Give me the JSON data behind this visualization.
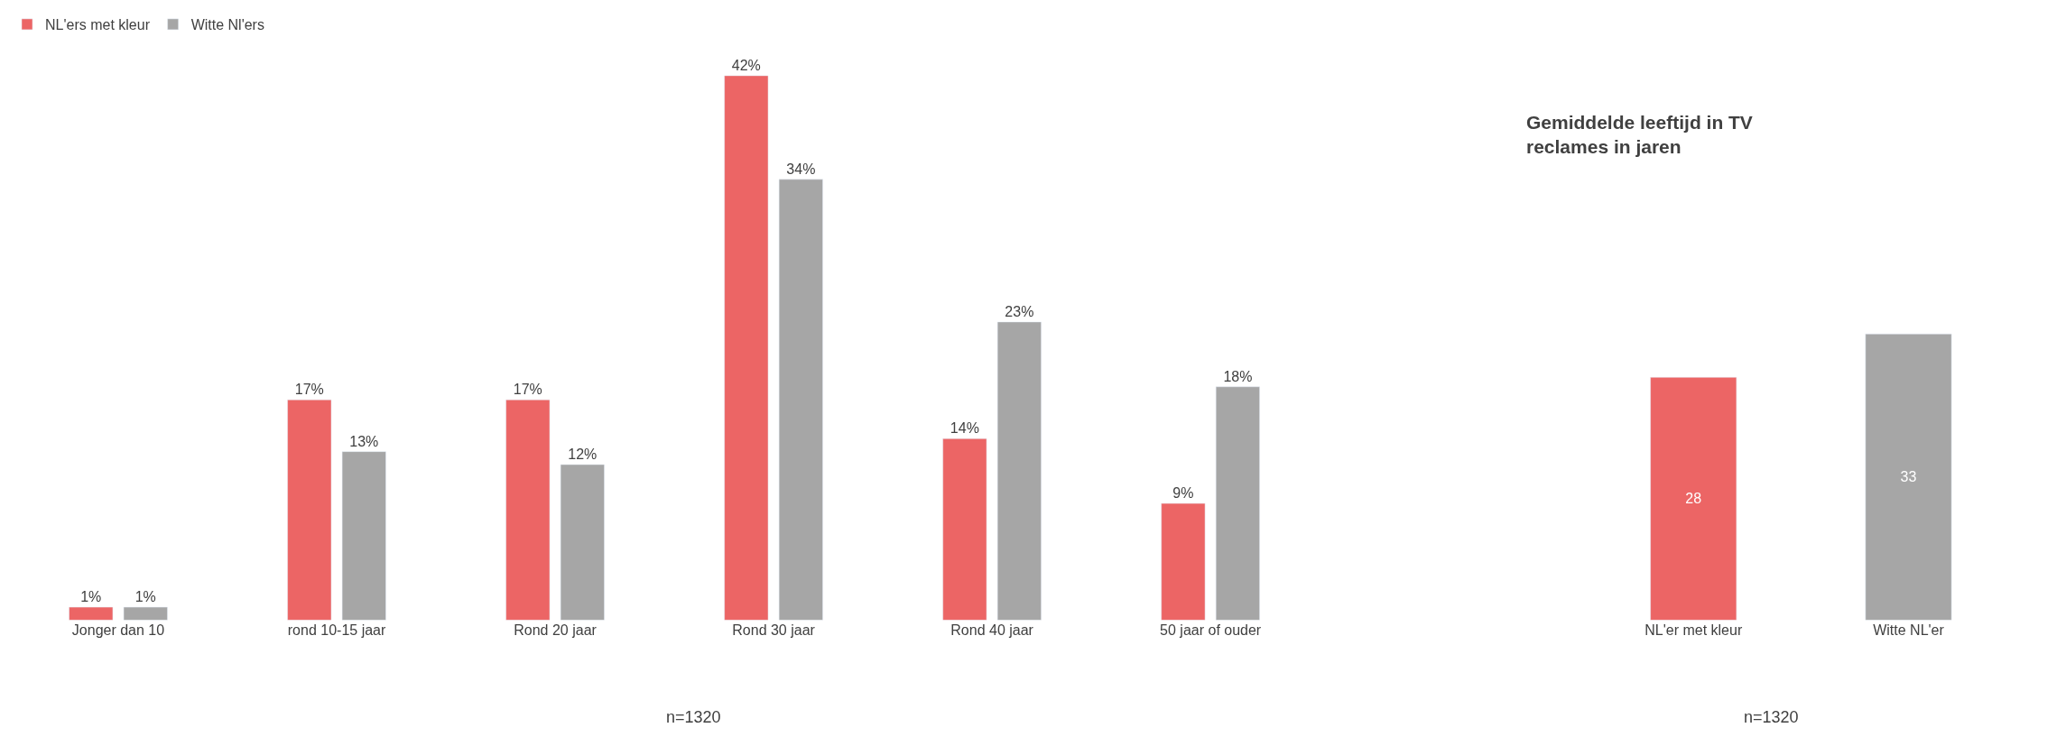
{
  "chart_data": [
    {
      "type": "bar",
      "categories": [
        "Jonger dan 10",
        "rond 10-15 jaar",
        "Rond 20 jaar",
        "Rond 30 jaar",
        "Rond 40 jaar",
        "50 jaar of ouder"
      ],
      "series": [
        {
          "name": "NL'ers met kleur",
          "color": "#ec6565",
          "values": [
            1,
            17,
            17,
            42,
            14,
            9
          ],
          "value_labels": [
            "1%",
            "17%",
            "17%",
            "42%",
            "14%",
            "9%"
          ]
        },
        {
          "name": "Witte Nl'ers",
          "color": "#a6a6a6",
          "values": [
            1,
            13,
            12,
            34,
            23,
            18
          ],
          "value_labels": [
            "1%",
            "13%",
            "12%",
            "34%",
            "23%",
            "18%"
          ]
        }
      ],
      "legend": "top left",
      "tick_labels": "x",
      "annotations": [
        "n=1320"
      ]
    },
    {
      "type": "bar",
      "title": "Gemiddelde leeftijd in TV reclames in jaren",
      "categories": [
        "NL'er met kleur",
        "Witte NL'er"
      ],
      "values": [
        28,
        33
      ],
      "colors": [
        "#ec6565",
        "#a6a6a6"
      ],
      "data_labels": true,
      "tick_labels": "x",
      "annotations": [
        "n=1320"
      ]
    }
  ]
}
